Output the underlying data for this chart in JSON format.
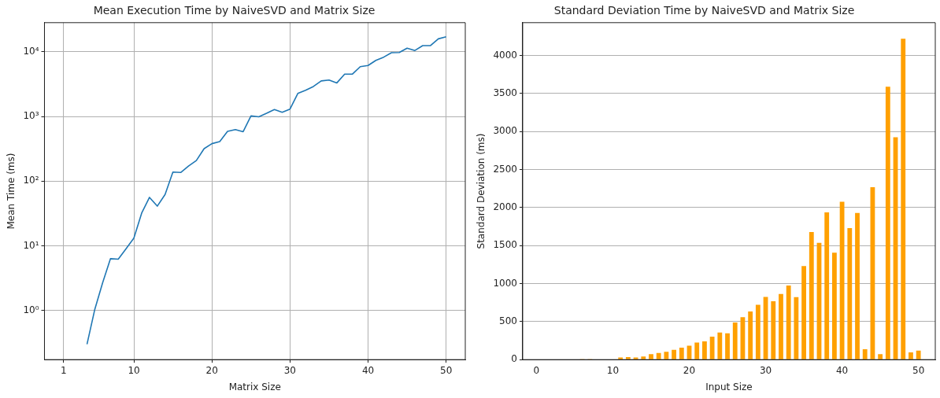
{
  "chart_data": [
    {
      "type": "line",
      "title": "Mean Execution Time by NaiveSVD and Matrix Size",
      "xlabel": "Matrix Size",
      "ylabel": "Mean Time (ms)",
      "series": [
        {
          "color": "#1f77b4",
          "x": [
            4,
            5,
            6,
            7,
            8,
            9,
            10,
            11,
            12,
            13,
            14,
            15,
            16,
            17,
            18,
            19,
            20,
            21,
            22,
            23,
            24,
            25,
            26,
            27,
            28,
            29,
            30,
            31,
            32,
            33,
            34,
            35,
            36,
            37,
            38,
            39,
            40,
            41,
            42,
            43,
            44,
            45,
            46,
            47,
            48,
            49,
            50
          ],
          "values": [
            0.3,
            1.04,
            2.67,
            6.3,
            6.2,
            9.0,
            13.1,
            32,
            56,
            41,
            62,
            138,
            136,
            171,
            208,
            318,
            380,
            408,
            590,
            627,
            582,
            1020,
            990,
            1120,
            1280,
            1160,
            1300,
            2270,
            2540,
            2910,
            3550,
            3670,
            3310,
            4530,
            4530,
            5900,
            6150,
            7380,
            8280,
            9690,
            9790,
            11400,
            10500,
            12500,
            12500,
            15900,
            17100
          ]
        }
      ],
      "log": "y",
      "xlim": [
        -1.45,
        52.45
      ],
      "xticks": [
        1,
        10,
        20,
        30,
        40,
        50
      ],
      "ylim": [
        0.173,
        28300
      ],
      "yticks": [
        {
          "value": 1,
          "label": "10⁰"
        },
        {
          "value": 10,
          "label": "10¹"
        },
        {
          "value": 100,
          "label": "10²"
        },
        {
          "value": 1000,
          "label": "10³"
        },
        {
          "value": 10000,
          "label": "10⁴"
        }
      ],
      "grid": true,
      "marker": "none",
      "line_style": "solid"
    },
    {
      "type": "bar",
      "title": "Standard Deviation Time by NaiveSVD and Matrix Size",
      "xlabel": "Input Size",
      "ylabel": "Standard Deviation (ms)",
      "x": [
        1,
        2,
        3,
        4,
        5,
        6,
        7,
        8,
        9,
        10,
        11,
        12,
        13,
        14,
        15,
        16,
        17,
        18,
        19,
        20,
        21,
        22,
        23,
        24,
        25,
        26,
        27,
        28,
        29,
        30,
        31,
        32,
        33,
        34,
        35,
        36,
        37,
        38,
        39,
        40,
        41,
        42,
        43,
        44,
        45,
        46,
        47,
        48,
        49,
        50
      ],
      "values": [
        0,
        0,
        0,
        0,
        0,
        8,
        6,
        0,
        0,
        0,
        27,
        34,
        27,
        42,
        72,
        88,
        103,
        130,
        156,
        183,
        225,
        240,
        302,
        355,
        347,
        489,
        557,
        634,
        721,
        824,
        767,
        863,
        973,
        821,
        1229,
        1676,
        1534,
        1935,
        1405,
        2076,
        1729,
        1928,
        137,
        2267,
        72,
        3588,
        2924,
        4218,
        95,
        118
      ],
      "color": "#ffa000",
      "xlim": [
        -1.8,
        52.2
      ],
      "xticks": [
        0,
        10,
        20,
        30,
        40,
        50
      ],
      "ylim": [
        0,
        4430
      ],
      "yticks": [
        0,
        500,
        1000,
        1500,
        2000,
        2500,
        3000,
        3500,
        4000
      ],
      "grid": "y"
    }
  ]
}
